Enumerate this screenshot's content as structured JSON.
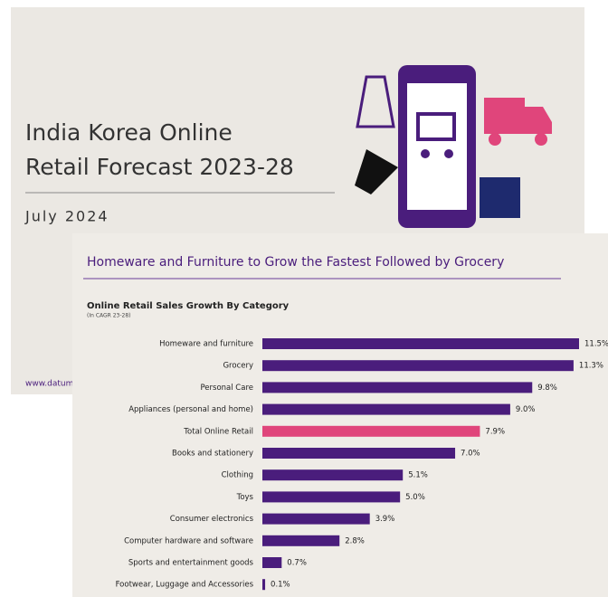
{
  "cover": {
    "title_lines": [
      "India Korea Online",
      "Retail Forecast 2023-28"
    ],
    "date": "July 2024",
    "url": "www.datumir"
  },
  "slide": {
    "headline": "Homeware and Furniture to Grow the Fastest Followed by Grocery"
  },
  "chart_data": {
    "type": "hbar",
    "title": "Online Retail Sales Growth By Category",
    "subtitle": "(In CAGR 23-28)",
    "categories": [
      "Homeware and furniture",
      "Grocery",
      "Personal Care",
      "Appliances (personal and home)",
      "Total Online Retail",
      "Books and stationery",
      "Clothing",
      "Toys",
      "Consumer electronics",
      "Computer hardware and software",
      "Sports and entertainment goods",
      "Footwear, Luggage and Accessories"
    ],
    "values": [
      11.5,
      11.3,
      9.8,
      9.0,
      7.9,
      7.0,
      5.1,
      5.0,
      3.9,
      2.8,
      0.7,
      0.1
    ],
    "value_labels": [
      "11.5%",
      "11.3%",
      "9.8%",
      "9.0%",
      "7.9%",
      "7.0%",
      "5.1%",
      "5.0%",
      "3.9%",
      "2.8%",
      "0.7%",
      "0.1%"
    ],
    "colors": [
      "#4a1d7c",
      "#4a1d7c",
      "#4a1d7c",
      "#4a1d7c",
      "#e0457b",
      "#4a1d7c",
      "#4a1d7c",
      "#4a1d7c",
      "#4a1d7c",
      "#4a1d7c",
      "#4a1d7c",
      "#4a1d7c"
    ]
  }
}
